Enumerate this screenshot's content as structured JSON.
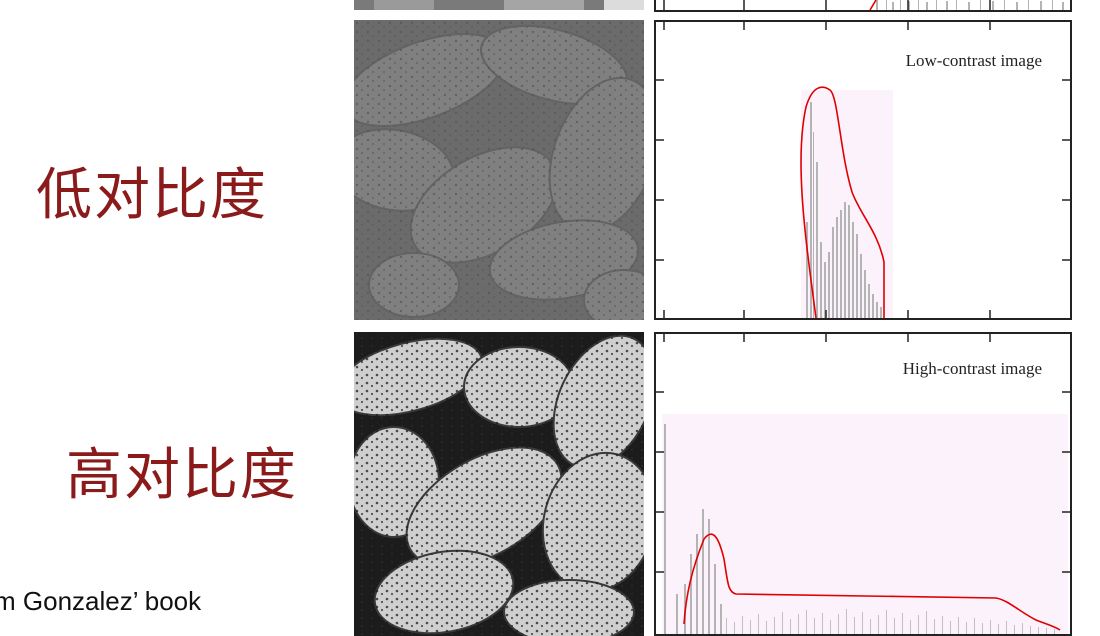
{
  "labels": {
    "low_contrast": "低对比度",
    "high_contrast": "高对比度"
  },
  "credit": "m Gonzalez’ book",
  "histograms": {
    "low_title": "Low-contrast image",
    "high_title": "High-contrast image"
  },
  "colors": {
    "label_red": "#8b1a1a",
    "curve_red": "#e00000",
    "histogram_band": "#fbf2fb",
    "histogram_bar": "#b4b4b4",
    "frame": "#222222"
  }
}
